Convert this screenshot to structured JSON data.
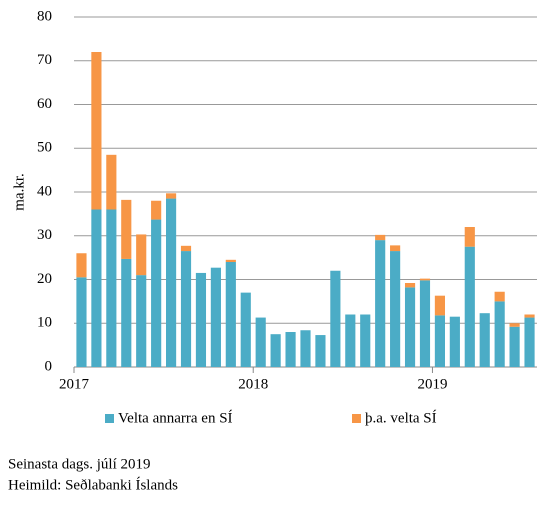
{
  "chart_data": {
    "type": "stacked_bar",
    "y_label": "ma.kr.",
    "categories": [
      "2017",
      null,
      null,
      null,
      null,
      null,
      null,
      null,
      null,
      null,
      null,
      null,
      "2018",
      null,
      null,
      null,
      null,
      null,
      null,
      null,
      null,
      null,
      null,
      null,
      "2019",
      null,
      null,
      null,
      null,
      null,
      null
    ],
    "series": [
      {
        "name": "Velta annarra en SÍ",
        "color": "#4bacc6",
        "values": [
          20.5,
          36,
          36,
          24.7,
          21,
          33.7,
          38.5,
          26.5,
          21.5,
          22.7,
          24,
          17,
          11.3,
          7.5,
          8,
          8.4,
          7.3,
          22,
          12,
          12,
          29,
          26.5,
          18.2,
          19.8,
          11.8,
          11.5,
          27.5,
          12.3,
          15,
          9.2,
          11.3
        ]
      },
      {
        "name": "þ.a. velta SÍ",
        "color": "#f79646",
        "values": [
          5.5,
          36,
          12.5,
          13.5,
          9.3,
          4.3,
          1.2,
          1.2,
          0,
          0,
          0.5,
          0,
          0,
          0,
          0,
          0,
          0,
          0,
          0,
          0,
          1.2,
          1.3,
          1,
          0.4,
          4.5,
          0,
          4.5,
          0,
          2.2,
          0.8,
          0.7
        ]
      }
    ],
    "ylim": [
      0,
      80
    ],
    "yticks": [
      0,
      10,
      20,
      30,
      40,
      50,
      60,
      70,
      80
    ],
    "grid": true,
    "notes": [
      "Seinasta dags. júlí 2019",
      "Heimild: Seðlabanki Íslands"
    ]
  }
}
